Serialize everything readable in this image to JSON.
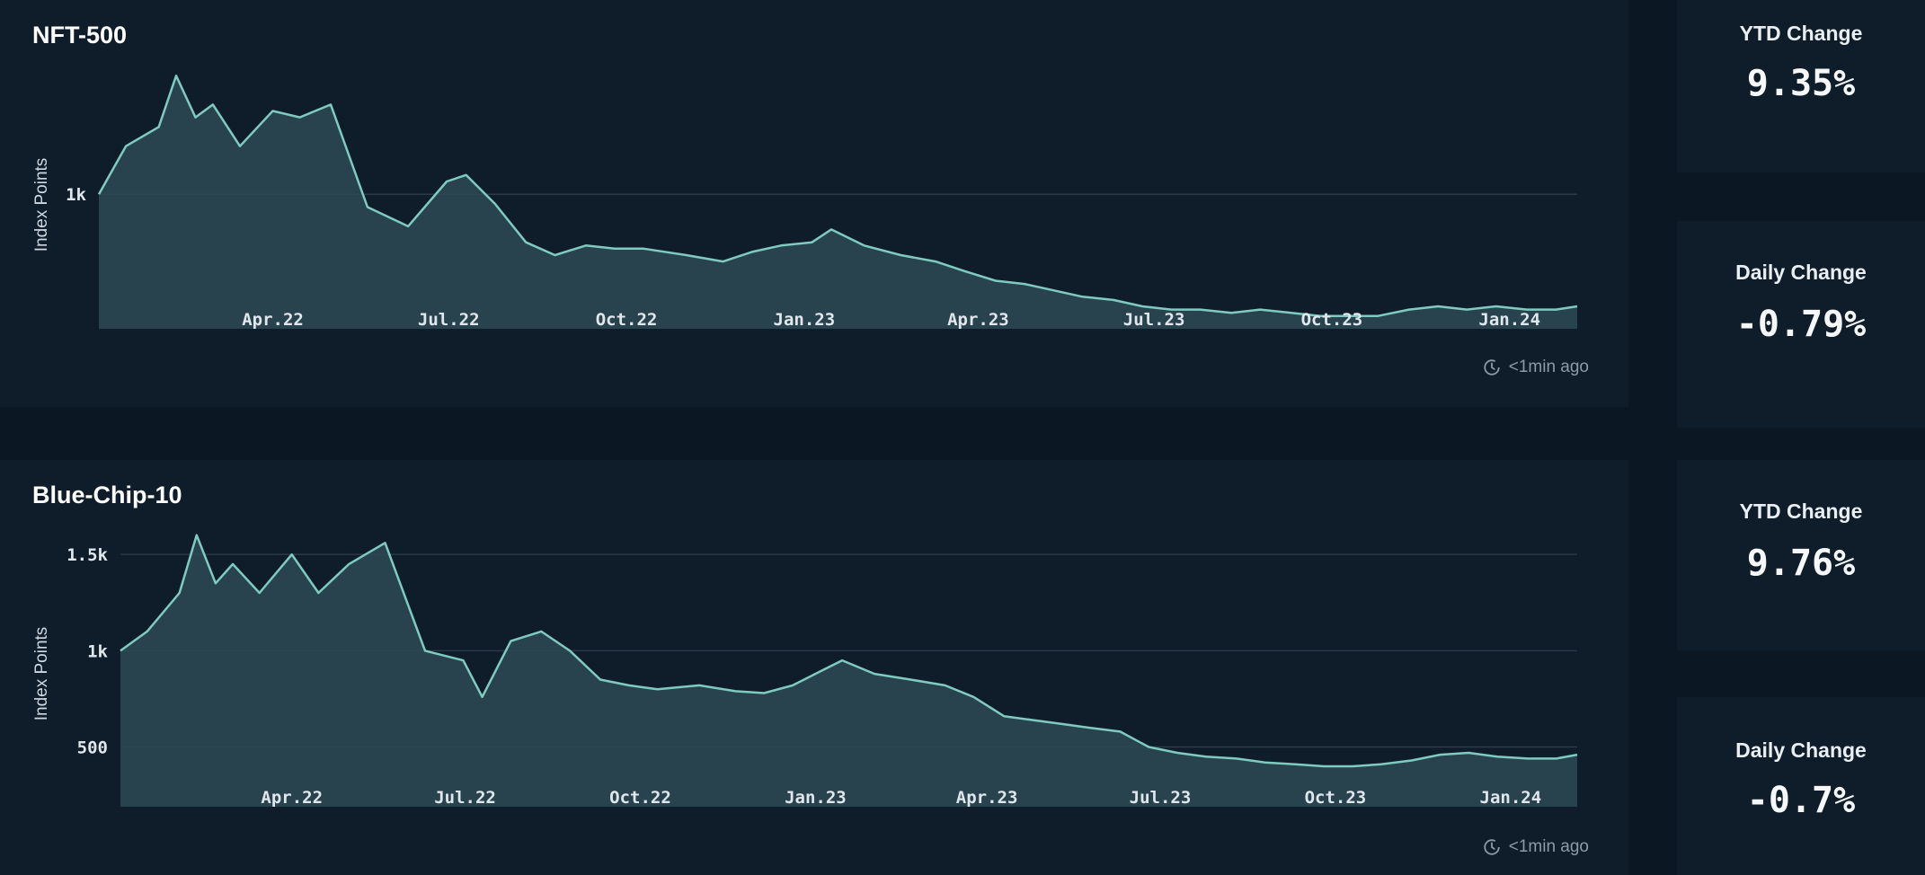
{
  "panels": [
    {
      "title": "NFT-500",
      "updated": "<1min ago",
      "ytd_label": "YTD Change",
      "ytd_value": "9.35%",
      "daily_label": "Daily Change",
      "daily_value": "-0.79%"
    },
    {
      "title": "Blue-Chip-10",
      "updated": "<1min ago",
      "ytd_label": "YTD Change",
      "ytd_value": "9.76%",
      "daily_label": "Daily Change",
      "daily_value": "-0.7%"
    }
  ],
  "colors": {
    "background": "#0b1824",
    "panel": "#0f1d2b",
    "line": "#7fcbc0",
    "area": "#2e4a55",
    "grid": "#2a3947"
  },
  "chart_data": [
    {
      "type": "area",
      "title": "NFT-500",
      "ylabel": "Index Points",
      "x_ticks": [
        "Apr.22",
        "Jul.22",
        "Oct.22",
        "Jan.23",
        "Apr.23",
        "Jul.23",
        "Oct.23",
        "Jan.24"
      ],
      "y_ticks": [
        {
          "value": 1000,
          "label": "1k"
        }
      ],
      "ylim": [
        580,
        1410
      ],
      "x": [
        "2022-01-01",
        "2022-01-15",
        "2022-02-01",
        "2022-02-10",
        "2022-02-20",
        "2022-03-01",
        "2022-03-15",
        "2022-04-01",
        "2022-04-15",
        "2022-05-01",
        "2022-05-20",
        "2022-06-10",
        "2022-06-30",
        "2022-07-10",
        "2022-07-25",
        "2022-08-10",
        "2022-08-25",
        "2022-09-10",
        "2022-09-25",
        "2022-10-10",
        "2022-11-01",
        "2022-11-20",
        "2022-12-05",
        "2022-12-20",
        "2023-01-05",
        "2023-01-15",
        "2023-02-01",
        "2023-02-20",
        "2023-03-10",
        "2023-03-25",
        "2023-04-10",
        "2023-04-25",
        "2023-05-10",
        "2023-05-25",
        "2023-06-10",
        "2023-06-25",
        "2023-07-10",
        "2023-07-25",
        "2023-08-10",
        "2023-08-25",
        "2023-09-10",
        "2023-09-25",
        "2023-10-10",
        "2023-10-25",
        "2023-11-10",
        "2023-11-25",
        "2023-12-10",
        "2023-12-25",
        "2024-01-10",
        "2024-01-25",
        "2024-02-05"
      ],
      "series": [
        {
          "values": [
            1000,
            1150,
            1210,
            1370,
            1240,
            1280,
            1150,
            1260,
            1240,
            1280,
            960,
            900,
            1040,
            1060,
            970,
            850,
            810,
            840,
            830,
            830,
            810,
            790,
            820,
            840,
            850,
            890,
            840,
            810,
            790,
            760,
            730,
            720,
            700,
            680,
            670,
            650,
            640,
            640,
            630,
            640,
            630,
            620,
            620,
            620,
            640,
            650,
            640,
            650,
            640,
            640,
            650
          ]
        }
      ]
    },
    {
      "type": "area",
      "title": "Blue-Chip-10",
      "ylabel": "Index Points",
      "x_ticks": [
        "Apr.22",
        "Jul.22",
        "Oct.22",
        "Jan.23",
        "Apr.23",
        "Jul.23",
        "Oct.23",
        "Jan.24"
      ],
      "y_ticks": [
        {
          "value": 1500,
          "label": "1.5k"
        },
        {
          "value": 1000,
          "label": "1k"
        },
        {
          "value": 500,
          "label": "500"
        }
      ],
      "ylim": [
        190,
        1720
      ],
      "x": [
        "2022-01-01",
        "2022-01-15",
        "2022-02-01",
        "2022-02-10",
        "2022-02-20",
        "2022-03-01",
        "2022-03-15",
        "2022-04-01",
        "2022-04-15",
        "2022-05-01",
        "2022-05-20",
        "2022-06-10",
        "2022-06-30",
        "2022-07-10",
        "2022-07-25",
        "2022-08-10",
        "2022-08-25",
        "2022-09-10",
        "2022-09-25",
        "2022-10-10",
        "2022-11-01",
        "2022-11-20",
        "2022-12-05",
        "2022-12-20",
        "2023-01-05",
        "2023-01-15",
        "2023-02-01",
        "2023-02-20",
        "2023-03-10",
        "2023-03-25",
        "2023-04-10",
        "2023-04-25",
        "2023-05-10",
        "2023-05-25",
        "2023-06-10",
        "2023-06-25",
        "2023-07-10",
        "2023-07-25",
        "2023-08-10",
        "2023-08-25",
        "2023-09-10",
        "2023-09-25",
        "2023-10-10",
        "2023-10-25",
        "2023-11-10",
        "2023-11-25",
        "2023-12-10",
        "2023-12-25",
        "2024-01-10",
        "2024-01-25",
        "2024-02-05"
      ],
      "series": [
        {
          "values": [
            1000,
            1100,
            1300,
            1600,
            1350,
            1450,
            1300,
            1500,
            1300,
            1450,
            1560,
            1000,
            950,
            760,
            1050,
            1100,
            1000,
            850,
            820,
            800,
            820,
            790,
            780,
            820,
            900,
            950,
            880,
            850,
            820,
            760,
            660,
            640,
            620,
            600,
            580,
            500,
            470,
            450,
            440,
            420,
            410,
            400,
            400,
            410,
            430,
            460,
            470,
            450,
            440,
            440,
            460
          ]
        }
      ]
    }
  ]
}
